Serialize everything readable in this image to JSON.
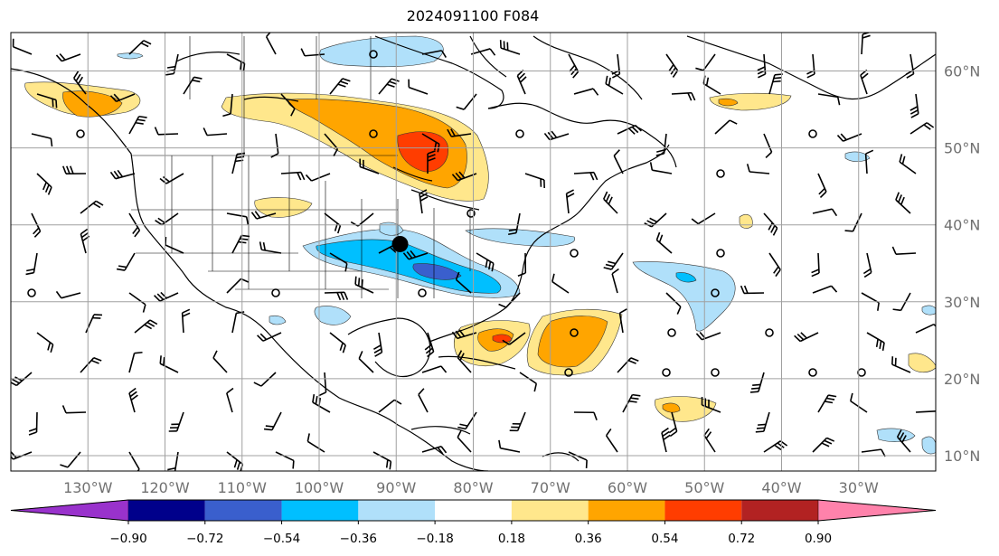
{
  "title": "2024091100 F084",
  "map": {
    "projection": "PlateCarree",
    "lon_range": [
      -140,
      -20
    ],
    "lat_range": [
      8,
      65
    ],
    "gridlines": true,
    "grid_color": "#a0a0a0",
    "marker": {
      "lon": -89.5,
      "lat": 37.5,
      "color": "#000000"
    }
  },
  "axes": {
    "lon_labels": [
      {
        "lon": -130,
        "label": "130°W"
      },
      {
        "lon": -120,
        "label": "120°W"
      },
      {
        "lon": -110,
        "label": "110°W"
      },
      {
        "lon": -100,
        "label": "100°W"
      },
      {
        "lon": -90,
        "label": "90°W"
      },
      {
        "lon": -80,
        "label": "80°W"
      },
      {
        "lon": -70,
        "label": "70°W"
      },
      {
        "lon": -60,
        "label": "60°W"
      },
      {
        "lon": -50,
        "label": "50°W"
      },
      {
        "lon": -40,
        "label": "40°W"
      },
      {
        "lon": -30,
        "label": "30°W"
      }
    ],
    "lat_labels": [
      {
        "lat": 60,
        "label": "60°N"
      },
      {
        "lat": 50,
        "label": "50°N"
      },
      {
        "lat": 40,
        "label": "40°N"
      },
      {
        "lat": 30,
        "label": "30°N"
      },
      {
        "lat": 20,
        "label": "20°N"
      },
      {
        "lat": 10,
        "label": "10°N"
      }
    ]
  },
  "colorbar": {
    "extend": "both",
    "colors": [
      "#9932cc",
      "#00008b",
      "#3a5fcd",
      "#00bfff",
      "#b0e0fa",
      "#ffffff",
      "#ffe78c",
      "#ffa500",
      "#ff3d00",
      "#b22222",
      "#ff82ab"
    ],
    "tick_labels": [
      "−0.90",
      "−0.72",
      "−0.54",
      "−0.36",
      "−0.18",
      "0.18",
      "0.36",
      "0.54",
      "0.72",
      "0.90"
    ]
  }
}
